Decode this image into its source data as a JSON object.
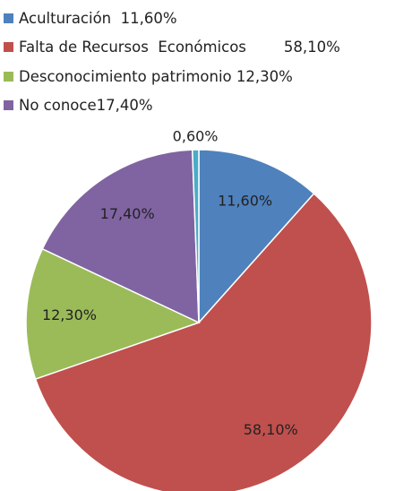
{
  "chart_data": {
    "type": "pie",
    "categories": [
      "Aculturación  11,60%",
      "Falta de Recursos  Económicos        58,10%",
      "Desconocimiento patrimonio 12,30%",
      "No conoce17,40%",
      null
    ],
    "values": [
      11.6,
      58.1,
      12.3,
      17.4,
      0.6
    ],
    "value_labels": [
      "11,60%",
      "58,10%",
      "12,30%",
      "17,40%",
      "0,60%"
    ],
    "colors": [
      "#4f81bd",
      "#c0504d",
      "#9bbb59",
      "#8064a2",
      "#4bacc6"
    ]
  }
}
